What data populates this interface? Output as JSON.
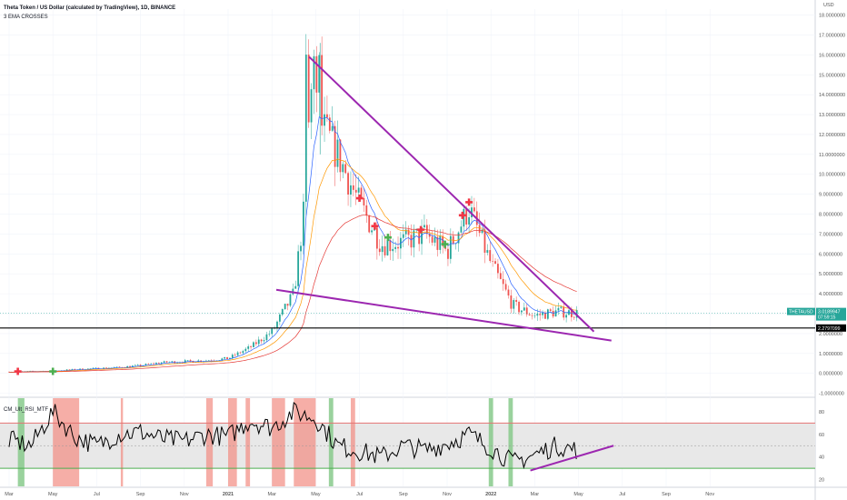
{
  "header": {
    "title": "Theta Token / US Dollar (calculated by TradingView), 1D, BINANCE",
    "subtitle": "3 EMA CROSSES",
    "currency": "USD"
  },
  "rsi_panel": {
    "label": "CM_Ult_RSI_MTF"
  },
  "price_tags": {
    "symbol": "THETAUSD",
    "last_price": "3.0189947",
    "countdown": "07:59:15",
    "support_level": "2.2797099"
  },
  "colors": {
    "wedge": "#9c27b0",
    "candle_up": "#26a69a",
    "candle_down": "#ef5350",
    "ema_fast": "#2962ff",
    "ema_mid": "#ff9800",
    "ema_slow": "#e53935",
    "cross_up": "#4caf50",
    "cross_down": "#f23645",
    "rsi_upper": "#e57373",
    "rsi_lower": "#4caf50",
    "rsi_line": "#000000",
    "rsi_high_band": "#f28b82",
    "rsi_low_band": "#81c784"
  },
  "chart_data": [
    {
      "type": "line",
      "title": "Theta Token / US Dollar (calculated by TradingView), 1D, BINANCE",
      "x_tick_labels": [
        "Mar",
        "May",
        "Jul",
        "Sep",
        "Nov",
        "2021",
        "Mar",
        "May",
        "Jul",
        "Sep",
        "Nov",
        "2022",
        "Mar",
        "May",
        "Jul",
        "Sep",
        "Nov"
      ],
      "y_tick_labels": [
        "-1.0000000",
        "0.0000000",
        "1.0000000",
        "2.0000000",
        "3.0000000",
        "4.0000000",
        "5.0000000",
        "6.0000000",
        "7.0000000",
        "8.0000000",
        "9.0000000",
        "10.0000000",
        "11.0000000",
        "12.0000000",
        "13.0000000",
        "14.0000000",
        "15.0000000",
        "16.0000000",
        "17.0000000",
        "18.0000000"
      ],
      "ylim": [
        -1.2,
        18.3
      ],
      "grid": true,
      "price_months": [
        0,
        1,
        2,
        3,
        4,
        5,
        6,
        7,
        8,
        9,
        10,
        11,
        12,
        13,
        14,
        15,
        16,
        17,
        18,
        19,
        20,
        21,
        22,
        23,
        24,
        25,
        26
      ],
      "price_close_approx": [
        0.08,
        0.1,
        0.12,
        0.2,
        0.25,
        0.3,
        0.4,
        0.55,
        0.6,
        0.65,
        0.75,
        1.3,
        2.1,
        4.0,
        13.0,
        11.0,
        8.5,
        6.5,
        6.6,
        7.0,
        6.1,
        8.3,
        5.5,
        3.4,
        2.9,
        3.1,
        3.02
      ],
      "peak_value": 16.6,
      "wedge": {
        "upper_line": [
          {
            "month": 13.7,
            "value": 15.9
          },
          {
            "month": 26.7,
            "value": 2.1
          }
        ],
        "lower_line": [
          {
            "month": 12.2,
            "value": 4.2
          },
          {
            "month": 27.5,
            "value": 1.65
          }
        ]
      },
      "horizontal_level": 2.2797099,
      "last_price": 3.0189947,
      "ema_crosses": [
        {
          "month": 0.4,
          "direction": "down"
        },
        {
          "month": 2.0,
          "direction": "up"
        },
        {
          "month": 16.0,
          "direction": "down"
        },
        {
          "month": 16.7,
          "direction": "down"
        },
        {
          "month": 17.3,
          "direction": "up"
        },
        {
          "month": 18.8,
          "direction": "down"
        },
        {
          "month": 19.9,
          "direction": "up"
        },
        {
          "month": 20.7,
          "direction": "down"
        },
        {
          "month": 21.0,
          "direction": "down"
        }
      ]
    },
    {
      "type": "line",
      "title": "CM_Ult_RSI_MTF",
      "y_tick_labels": [
        "20",
        "40",
        "60",
        "80"
      ],
      "ylim": [
        14,
        92
      ],
      "upper_band": 70,
      "lower_band": 30,
      "midline": 50,
      "grid": true,
      "rsi_months": [
        0,
        1,
        2,
        3,
        4,
        5,
        6,
        7,
        8,
        9,
        10,
        11,
        12,
        13,
        14,
        15,
        16,
        17,
        18,
        19,
        20,
        21,
        22,
        23,
        24,
        25,
        26
      ],
      "rsi_approx": [
        55,
        50,
        80,
        58,
        50,
        60,
        62,
        56,
        54,
        60,
        58,
        72,
        66,
        80,
        74,
        50,
        45,
        40,
        50,
        46,
        52,
        60,
        48,
        35,
        42,
        50,
        46
      ],
      "overbought_spans": [
        [
          2.0,
          3.2
        ],
        [
          5.1,
          5.2
        ],
        [
          9.0,
          9.3
        ],
        [
          10.0,
          10.4
        ],
        [
          10.8,
          11.0
        ],
        [
          12.0,
          12.6
        ],
        [
          13.0,
          14.0
        ],
        [
          15.6,
          15.8
        ]
      ],
      "oversold_spans": [
        [
          0.4,
          0.7
        ],
        [
          14.6,
          14.8
        ],
        [
          21.9,
          22.1
        ],
        [
          22.8,
          23.0
        ]
      ],
      "trendline": [
        {
          "month": 23.8,
          "value": 28
        },
        {
          "month": 27.6,
          "value": 50
        }
      ]
    }
  ]
}
